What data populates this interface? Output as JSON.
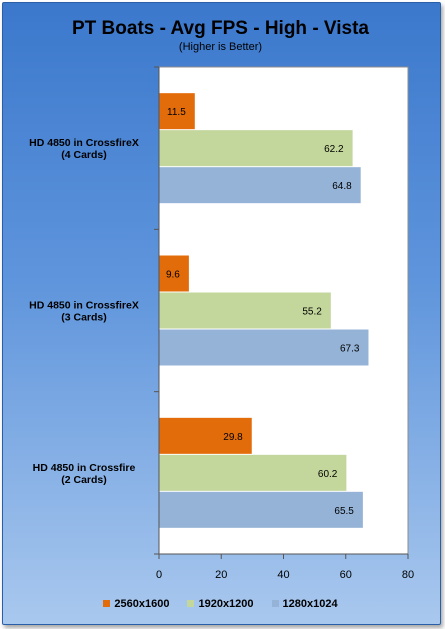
{
  "chart_data": {
    "type": "bar",
    "orientation": "horizontal",
    "title": "PT Boats - Avg FPS - High - Vista",
    "subtitle": "(Higher is Better)",
    "categories": [
      [
        "HD 4850 in CrossfireX",
        "(4 Cards)"
      ],
      [
        "HD 4850 in CrossfireX",
        "(3 Cards)"
      ],
      [
        "HD 4850 in Crossfire",
        "(2 Cards)"
      ]
    ],
    "series": [
      {
        "name": "2560x1600",
        "color": "#e36c0a",
        "values": [
          11.5,
          9.6,
          29.8
        ]
      },
      {
        "name": "1920x1200",
        "color": "#c3d69b",
        "values": [
          62.2,
          55.2,
          60.2
        ]
      },
      {
        "name": "1280x1024",
        "color": "#95b3d7",
        "values": [
          64.8,
          67.3,
          65.5
        ]
      }
    ],
    "xlim": [
      0,
      80
    ],
    "xticks": [
      0,
      20,
      40,
      60,
      80
    ],
    "legend_position": "bottom",
    "grid": false
  }
}
